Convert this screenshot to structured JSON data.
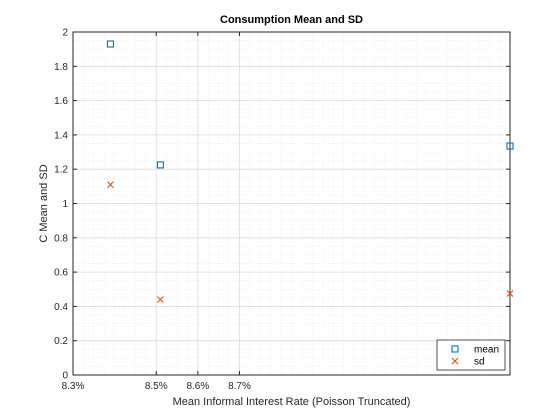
{
  "chart_data": {
    "type": "scatter",
    "title": "Consumption Mean and SD",
    "xlabel": "Mean Informal Interest Rate (Poisson Truncated)",
    "ylabel": "C Mean and SD",
    "xlim": [
      0.083,
      0.0935
    ],
    "ylim": [
      0,
      2
    ],
    "x_ticks": [
      0.083,
      0.085,
      0.086,
      0.087
    ],
    "x_tick_labels": [
      "8.3%",
      "8.5%",
      "8.6%",
      "8.7%"
    ],
    "y_ticks": [
      0,
      0.2,
      0.4,
      0.6,
      0.8,
      1,
      1.2,
      1.4,
      1.6,
      1.8,
      2
    ],
    "y_tick_labels": [
      "0",
      "0.2",
      "0.4",
      "0.6",
      "0.8",
      "1",
      "1.2",
      "1.4",
      "1.6",
      "1.8",
      "2"
    ],
    "grid": true,
    "minor_grid": true,
    "legend_position": "bottom-right",
    "series": [
      {
        "name": "mean",
        "marker": "square",
        "color": "#0072BD",
        "x": [
          0.0839,
          0.0851,
          0.0935
        ],
        "y": [
          1.93,
          1.225,
          1.335
        ]
      },
      {
        "name": "sd",
        "marker": "x",
        "color": "#D95319",
        "x": [
          0.0839,
          0.0851,
          0.0935
        ],
        "y": [
          1.11,
          0.44,
          0.475
        ]
      }
    ]
  }
}
